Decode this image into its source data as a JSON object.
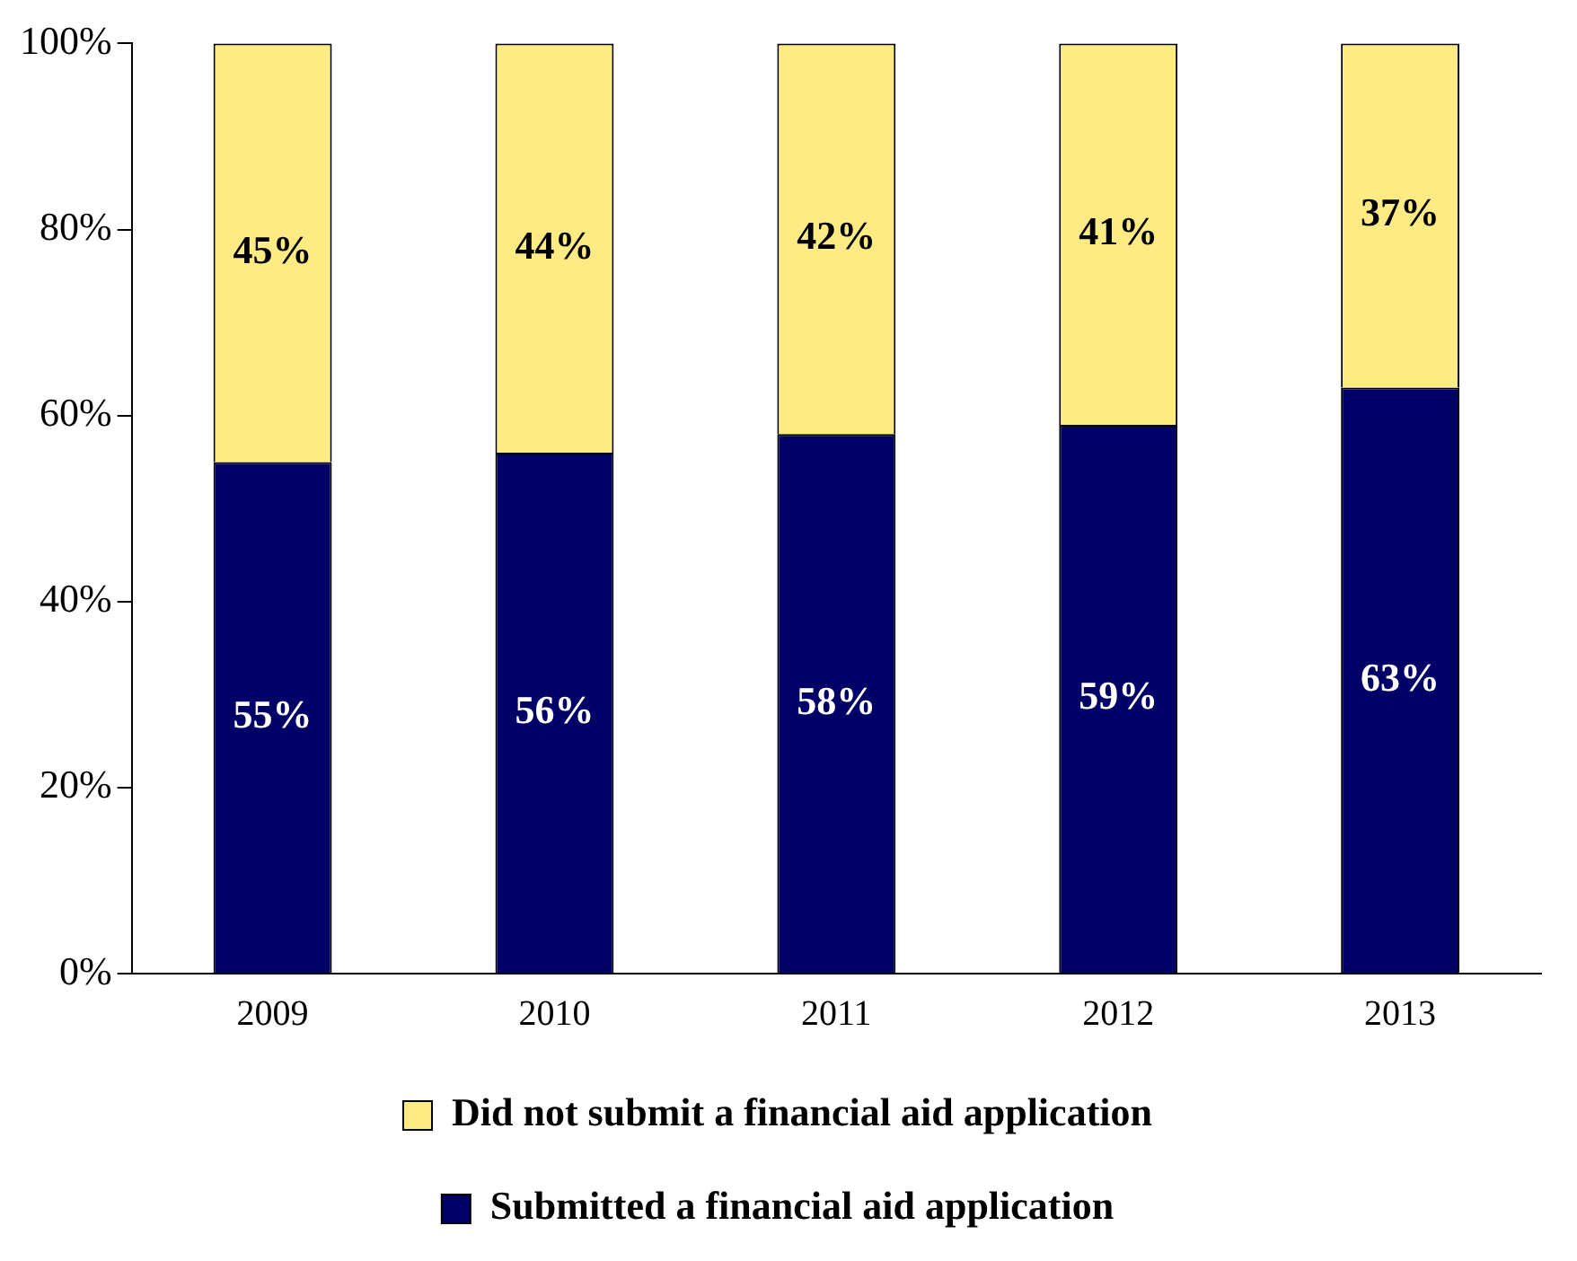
{
  "chart_data": {
    "type": "bar",
    "stacked": true,
    "categories": [
      "2009",
      "2010",
      "2011",
      "2012",
      "2013"
    ],
    "series": [
      {
        "name": "Submitted a financial aid application",
        "color": "#000066",
        "values": [
          55,
          56,
          58,
          59,
          63
        ]
      },
      {
        "name": "Did not submit a financial aid application",
        "color": "#ffeb84",
        "values": [
          45,
          44,
          42,
          41,
          37
        ]
      }
    ],
    "ylim": [
      0,
      100
    ],
    "yticks": [
      {
        "value": 0,
        "label": "0%"
      },
      {
        "value": 20,
        "label": "20%"
      },
      {
        "value": 40,
        "label": "40%"
      },
      {
        "value": 60,
        "label": "60%"
      },
      {
        "value": 80,
        "label": "80%"
      },
      {
        "value": 100,
        "label": "100%"
      }
    ],
    "value_labels": [
      [
        "55%",
        "56%",
        "58%",
        "59%",
        "63%"
      ],
      [
        "45%",
        "44%",
        "42%",
        "41%",
        "37%"
      ]
    ],
    "grid": false,
    "legend": "bottom"
  }
}
